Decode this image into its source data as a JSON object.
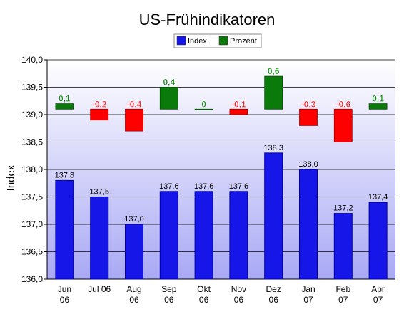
{
  "chart_data": {
    "type": "bar",
    "title": "US-Frühindikatoren",
    "ylabel": "Index",
    "xlabel": "",
    "ylim": [
      136.0,
      140.0
    ],
    "ytick_step": 0.5,
    "grid": true,
    "legend_position": "top-center",
    "categories": [
      "Jun 06",
      "Jul 06",
      "Aug 06",
      "Sep 06",
      "Okt 06",
      "Nov 06",
      "Dez 06",
      "Jan 07",
      "Feb 07",
      "Apr 07"
    ],
    "category_lines": [
      [
        "Jun",
        "06"
      ],
      [
        "Jul 06",
        ""
      ],
      [
        "Aug",
        "06"
      ],
      [
        "Sep",
        "06"
      ],
      [
        "Okt",
        "06"
      ],
      [
        "Nov",
        "06"
      ],
      [
        "Dez",
        "06"
      ],
      [
        "Jan",
        "07"
      ],
      [
        "Feb",
        "07"
      ],
      [
        "Apr",
        "07"
      ]
    ],
    "series": [
      {
        "name": "Index",
        "color": "#1616e8",
        "values": [
          137.8,
          137.5,
          137.0,
          137.6,
          137.6,
          137.6,
          138.3,
          138.0,
          137.2,
          137.4
        ],
        "labels": [
          "137,8",
          "137,5",
          "137,0",
          "137,6",
          "137,6",
          "137,6",
          "138,3",
          "138,0",
          "137,2",
          "137,4"
        ]
      },
      {
        "name": "Prozent",
        "color": "#0a7a0a",
        "negative_color": "#ff0000",
        "baseline": 139.1,
        "values": [
          0.1,
          -0.2,
          -0.4,
          0.4,
          0.0,
          -0.1,
          0.6,
          -0.3,
          -0.6,
          0.1
        ],
        "labels": [
          "0,1",
          "-0,2",
          "-0,4",
          "0,4",
          "0",
          "-0,1",
          "0,6",
          "-0,3",
          "-0,6",
          "0,1"
        ]
      }
    ],
    "ytick_labels": [
      "136,0",
      "136,5",
      "137,0",
      "137,5",
      "138,0",
      "138,5",
      "139,0",
      "139,5",
      "140,0"
    ]
  }
}
